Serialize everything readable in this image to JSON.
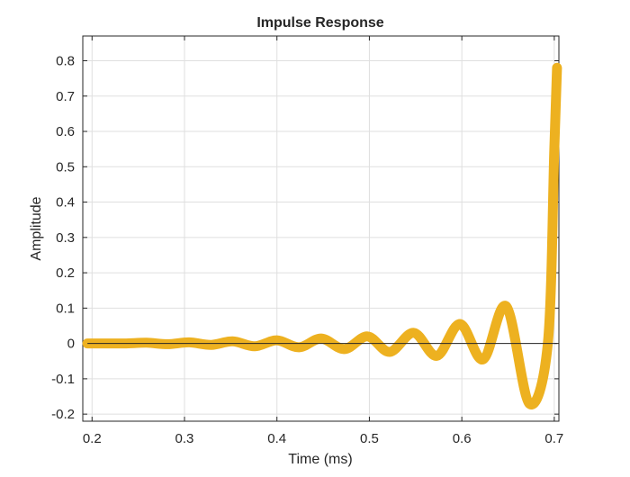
{
  "chart_data": {
    "type": "line",
    "title": "Impulse Response",
    "xlabel": "Time (ms)",
    "ylabel": "Amplitude",
    "xlim": [
      0.19,
      0.705
    ],
    "ylim": [
      -0.22,
      0.87
    ],
    "xticks": [
      0.2,
      0.3,
      0.4,
      0.5,
      0.6,
      0.7
    ],
    "xtick_labels": [
      "0.2",
      "0.3",
      "0.4",
      "0.5",
      "0.6",
      "0.7"
    ],
    "yticks": [
      -0.2,
      -0.1,
      0,
      0.1,
      0.2,
      0.3,
      0.4,
      0.5,
      0.6,
      0.7,
      0.8
    ],
    "ytick_labels": [
      "-0.2",
      "-0.1",
      "0",
      "0.1",
      "0.2",
      "0.3",
      "0.4",
      "0.5",
      "0.6",
      "0.7",
      "0.8"
    ],
    "grid": true,
    "series": [
      {
        "color": "#EDB120",
        "x": [
          0.195,
          0.21,
          0.235,
          0.259,
          0.282,
          0.305,
          0.329,
          0.352,
          0.376,
          0.4,
          0.424,
          0.448,
          0.473,
          0.498,
          0.522,
          0.548,
          0.573,
          0.598,
          0.623,
          0.648,
          0.673,
          0.693,
          0.7,
          0.703
        ],
        "y": [
          0.0,
          0.0,
          0.0,
          0.002,
          -0.002,
          0.003,
          -0.004,
          0.006,
          -0.008,
          0.009,
          -0.011,
          0.014,
          -0.016,
          0.02,
          -0.024,
          0.03,
          -0.035,
          0.055,
          -0.045,
          0.105,
          -0.17,
          0.0,
          0.55,
          0.78
        ]
      }
    ]
  }
}
